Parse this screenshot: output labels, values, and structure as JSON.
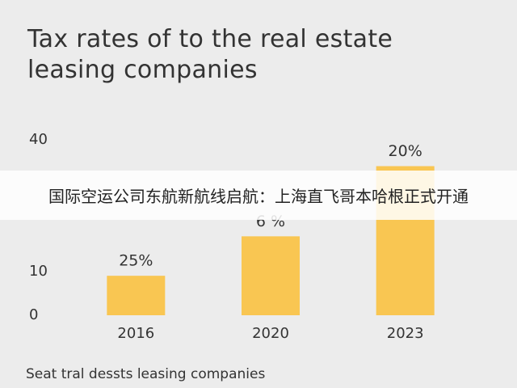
{
  "chart_data": {
    "type": "bar",
    "title": "Tax rates of to the real estate leasing companies",
    "categories": [
      "2016",
      "2020",
      "2023"
    ],
    "values": [
      9,
      18,
      34
    ],
    "annotations": [
      "25%",
      "6 %",
      "20%"
    ],
    "color": "#f9c652",
    "ylim": [
      0,
      40
    ],
    "yticks": [
      0,
      10,
      40
    ],
    "grid": false,
    "x_label": "Seat tral dessts leasing companies"
  },
  "overlay_banner": "国际空运公司东航新航线启航：上海直飞哥本哈根正式开通"
}
